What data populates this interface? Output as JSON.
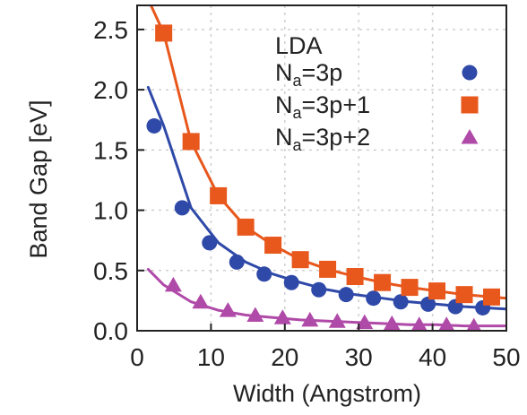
{
  "chart_data": {
    "type": "scatter",
    "title": "",
    "xlabel": "Width (Angstrom)",
    "ylabel": "Band Gap [eV]",
    "xlim": [
      0,
      50
    ],
    "ylim": [
      0,
      2.7
    ],
    "x_ticks": [
      0,
      10,
      20,
      30,
      40,
      50
    ],
    "x_tick_labels": [
      "0",
      "10",
      "20",
      "30",
      "40",
      "50"
    ],
    "y_ticks": [
      0.0,
      0.5,
      1.0,
      1.5,
      2.0,
      2.5
    ],
    "y_tick_labels": [
      "0.0",
      "0.5",
      "1.0",
      "1.5",
      "2.0",
      "2.5"
    ],
    "grid": true,
    "legend": {
      "title": "LDA",
      "placement": "top-right"
    },
    "series": [
      {
        "name_main": "N",
        "name_sub": "a",
        "name_rest": "=3p",
        "color": "#2f49a8",
        "marker": "circle",
        "x": [
          2.3,
          6.1,
          9.8,
          13.5,
          17.2,
          20.9,
          24.6,
          28.3,
          32.0,
          35.7,
          39.4,
          43.1,
          46.8
        ],
        "y": [
          1.7,
          1.02,
          0.73,
          0.57,
          0.47,
          0.4,
          0.34,
          0.3,
          0.27,
          0.24,
          0.22,
          0.2,
          0.19
        ],
        "fit_y": [
          2.02,
          1.7,
          1.02,
          0.73,
          0.57,
          0.47,
          0.4,
          0.34,
          0.3,
          0.27,
          0.24,
          0.22,
          0.2,
          0.18
        ]
      },
      {
        "name_main": "N",
        "name_sub": "a",
        "name_rest": "=3p+1",
        "color": "#e8571c",
        "marker": "square",
        "x": [
          3.6,
          7.3,
          11.0,
          14.7,
          18.4,
          22.1,
          25.8,
          29.5,
          33.2,
          36.9,
          40.6,
          44.3,
          48.0
        ],
        "y": [
          2.47,
          1.57,
          1.12,
          0.86,
          0.71,
          0.59,
          0.51,
          0.45,
          0.4,
          0.36,
          0.33,
          0.3,
          0.28
        ],
        "fit_y": [
          2.75,
          2.47,
          1.57,
          1.12,
          0.86,
          0.71,
          0.59,
          0.51,
          0.45,
          0.4,
          0.36,
          0.33,
          0.3,
          0.27
        ]
      },
      {
        "name_main": "N",
        "name_sub": "a",
        "name_rest": "=3p+2",
        "color": "#b04aa8",
        "marker": "triangle",
        "x": [
          4.9,
          8.6,
          12.3,
          16.0,
          19.7,
          23.4,
          27.1,
          30.8,
          34.5,
          38.2,
          41.9,
          45.6
        ],
        "y": [
          0.38,
          0.24,
          0.17,
          0.13,
          0.11,
          0.09,
          0.08,
          0.07,
          0.06,
          0.05,
          0.05,
          0.04
        ],
        "fit_y": [
          0.51,
          0.38,
          0.24,
          0.17,
          0.13,
          0.11,
          0.09,
          0.08,
          0.07,
          0.06,
          0.05,
          0.05,
          0.04,
          0.04
        ]
      }
    ],
    "fit_x": [
      1.5,
      3.6,
      7.3,
      11.0,
      14.7,
      18.4,
      22.1,
      25.8,
      29.5,
      33.2,
      36.9,
      40.6,
      44.3,
      50.0
    ]
  }
}
